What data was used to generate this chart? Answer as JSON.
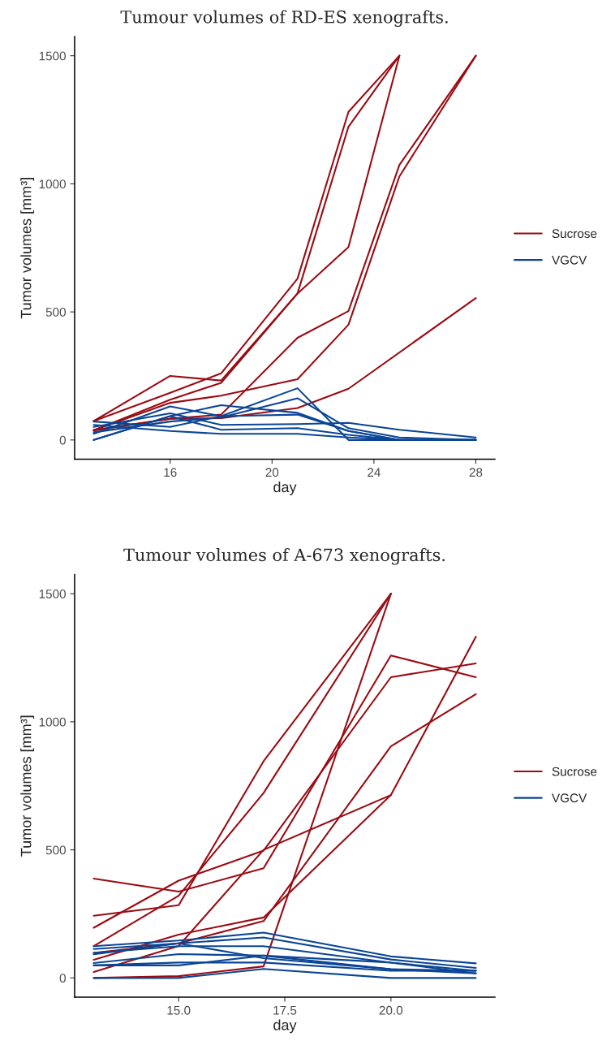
{
  "chart_data": [
    {
      "type": "line",
      "title": "Tumour volumes of RD-ES xenografts.",
      "xlabel": "day",
      "ylabel": "Tumor volumes [mm³]",
      "xlim": [
        12.25,
        28.75
      ],
      "ylim": [
        -75,
        1575
      ],
      "xticks": [
        16,
        20,
        24,
        28
      ],
      "yticks": [
        0,
        500,
        1000,
        1500
      ],
      "grid": false,
      "legend": "right",
      "series": [
        {
          "name": "Sucrose",
          "color": "#9b0b12",
          "x": [
            13,
            16,
            18,
            21,
            23,
            25
          ],
          "values": [
            74,
            250,
            232,
            572,
            1223,
            1500
          ]
        },
        {
          "color": "#9b0b12",
          "x": [
            13,
            16,
            18,
            21,
            23,
            25
          ],
          "values": [
            74,
            184,
            260,
            630,
            1281,
            1500
          ]
        },
        {
          "color": "#9b0b12",
          "x": [
            13,
            16,
            18,
            21,
            23,
            25
          ],
          "values": [
            38,
            157,
            223,
            572,
            753,
            1500
          ]
        },
        {
          "color": "#9b0b12",
          "x": [
            13,
            16,
            18,
            21,
            23,
            25,
            28
          ],
          "values": [
            38,
            145,
            173,
            237,
            450,
            1029,
            1500
          ]
        },
        {
          "color": "#9b0b12",
          "x": [
            13,
            16,
            18,
            21,
            23,
            25,
            28
          ],
          "values": [
            38,
            83,
            99,
            399,
            503,
            1074,
            1500
          ]
        },
        {
          "color": "#9b0b12",
          "x": [
            13,
            16,
            18,
            21,
            23,
            28
          ],
          "values": [
            38,
            83,
            85,
            125,
            200,
            554
          ]
        },
        {
          "name": "VGCV",
          "color": "#0b4595",
          "x": [
            13,
            16,
            18,
            21,
            23,
            25,
            28
          ],
          "values": [
            0,
            93,
            136,
            106,
            35,
            0,
            0
          ]
        },
        {
          "color": "#0b4595",
          "x": [
            13,
            16,
            18,
            21,
            23,
            25,
            28
          ],
          "values": [
            24,
            131,
            93,
            202,
            0,
            0,
            0
          ]
        },
        {
          "color": "#0b4595",
          "x": [
            13,
            16,
            18,
            21,
            23,
            25,
            28
          ],
          "values": [
            30,
            72,
            88,
            163,
            46,
            10,
            0
          ]
        },
        {
          "color": "#0b4595",
          "x": [
            13,
            16,
            18,
            21,
            23,
            25,
            28
          ],
          "values": [
            51,
            104,
            59,
            62,
            67,
            40,
            10
          ]
        },
        {
          "color": "#0b4595",
          "x": [
            13,
            16,
            18,
            21,
            23,
            25,
            28
          ],
          "values": [
            59,
            35,
            24,
            24,
            10,
            0,
            0
          ]
        },
        {
          "color": "#0b4595",
          "x": [
            13,
            16,
            18,
            21,
            23,
            25,
            28
          ],
          "values": [
            72,
            51,
            93,
            99,
            35,
            0,
            0
          ]
        },
        {
          "color": "#0b4595",
          "x": [
            13,
            16,
            18,
            21,
            23,
            25,
            28
          ],
          "values": [
            0,
            93,
            40,
            46,
            20,
            0,
            0
          ]
        }
      ]
    },
    {
      "type": "line",
      "title": "Tumour volumes of A-673 xenografts.",
      "xlabel": "day",
      "ylabel": "Tumor volumes [mm³]",
      "xlim": [
        12.55,
        22.45
      ],
      "ylim": [
        -75,
        1575
      ],
      "xticks": [
        {
          "value": 15,
          "label": "15.0"
        },
        {
          "value": 17.5,
          "label": "17.5"
        },
        {
          "value": 20,
          "label": "20.0"
        }
      ],
      "yticks": [
        0,
        500,
        1000,
        1500
      ],
      "grid": false,
      "legend": "right",
      "series": [
        {
          "name": "Sucrose",
          "color": "#9b0b12",
          "x": [
            13,
            15,
            17,
            20,
            22
          ],
          "values": [
            388,
            337,
            428,
            1259,
            1174
          ]
        },
        {
          "color": "#9b0b12",
          "x": [
            13,
            15,
            17,
            20,
            22
          ],
          "values": [
            196,
            380,
            497,
            1174,
            1228
          ]
        },
        {
          "color": "#9b0b12",
          "x": [
            13,
            15,
            17,
            20
          ],
          "values": [
            243,
            284,
            846,
            1500
          ]
        },
        {
          "color": "#9b0b12",
          "x": [
            13,
            15,
            17,
            20
          ],
          "values": [
            124,
            321,
            722,
            1500
          ]
        },
        {
          "color": "#9b0b12",
          "x": [
            13,
            15,
            17,
            20,
            22
          ],
          "values": [
            71,
            169,
            236,
            714,
            1332
          ]
        },
        {
          "color": "#9b0b12",
          "x": [
            13,
            15,
            17,
            20,
            22
          ],
          "values": [
            98,
            135,
            222,
            904,
            1108
          ]
        },
        {
          "color": "#9b0b12",
          "x": [
            13,
            15,
            17,
            20
          ],
          "values": [
            23,
            125,
            500,
            714
          ]
        },
        {
          "color": "#9b0b12",
          "x": [
            13,
            15,
            17,
            20
          ],
          "values": [
            0,
            7,
            45,
            1500
          ]
        },
        {
          "name": "VGCV",
          "color": "#0b4595",
          "x": [
            13,
            15,
            17,
            20,
            22
          ],
          "values": [
            124,
            146,
            177,
            84,
            57
          ]
        },
        {
          "color": "#0b4595",
          "x": [
            13,
            15,
            17,
            20,
            22
          ],
          "values": [
            113,
            135,
            158,
            72,
            39
          ]
        },
        {
          "color": "#0b4595",
          "x": [
            13,
            15,
            17,
            20,
            22
          ],
          "values": [
            98,
            124,
            124,
            60,
            28
          ]
        },
        {
          "color": "#0b4595",
          "x": [
            13,
            15,
            17,
            20,
            22
          ],
          "values": [
            92,
            135,
            77,
            34,
            28
          ]
        },
        {
          "color": "#0b4595",
          "x": [
            13,
            15,
            17,
            20,
            22
          ],
          "values": [
            58,
            93,
            87,
            60,
            18
          ]
        },
        {
          "color": "#0b4595",
          "x": [
            13,
            15,
            17,
            20,
            22
          ],
          "values": [
            49,
            60,
            60,
            28,
            28
          ]
        },
        {
          "color": "#0b4595",
          "x": [
            13,
            15,
            17,
            20,
            22
          ],
          "values": [
            0,
            0,
            35,
            0,
            0
          ]
        },
        {
          "color": "#0b4595",
          "x": [
            13,
            15,
            17,
            20,
            22
          ],
          "values": [
            49,
            49,
            87,
            34,
            18
          ]
        }
      ]
    }
  ]
}
